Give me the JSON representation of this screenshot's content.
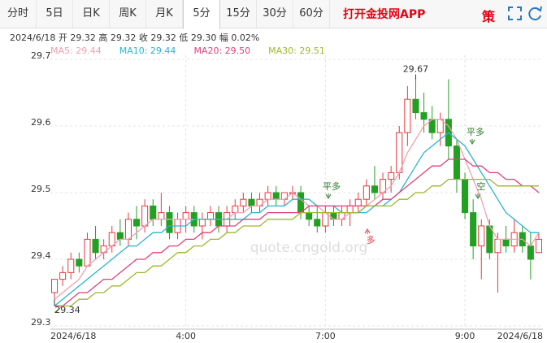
{
  "header": {
    "tabs": [
      {
        "label": "分时"
      },
      {
        "label": "5日"
      },
      {
        "label": "日K"
      },
      {
        "label": "周K"
      },
      {
        "label": "月K"
      },
      {
        "label": "5分",
        "active": true
      },
      {
        "label": "15分"
      },
      {
        "label": "30分"
      },
      {
        "label": "60分"
      }
    ],
    "app_link": "打开金投网APP",
    "strategy": "策",
    "info": "2024/6/18 开 29.32 高 29.32 收 29.32 低 29.30 幅 0.02%"
  },
  "chart_data": {
    "type": "candlestick",
    "watermark": "quote.cngold.org",
    "categories": [
      "2024/6/18",
      null,
      null,
      null,
      null,
      null,
      null,
      null,
      null,
      null,
      null,
      null,
      null,
      null,
      null,
      null,
      "4:00",
      null,
      null,
      null,
      null,
      null,
      null,
      null,
      null,
      null,
      null,
      null,
      null,
      null,
      null,
      null,
      null,
      "7:00",
      null,
      null,
      null,
      null,
      null,
      null,
      null,
      null,
      null,
      null,
      null,
      null,
      null,
      null,
      null,
      null,
      "9:00",
      null,
      null,
      null,
      null,
      null,
      null,
      null,
      null,
      "2024/6/18"
    ],
    "ylim": [
      29.3,
      29.7
    ],
    "yticks": [
      29.3,
      29.4,
      29.5,
      29.6,
      29.7
    ],
    "grid": true,
    "up_color": "#e8383d",
    "down_color": "#22a022",
    "open": [
      29.35,
      29.37,
      29.38,
      29.4,
      29.39,
      29.43,
      29.41,
      29.42,
      29.44,
      29.43,
      29.46,
      29.45,
      29.48,
      29.46,
      29.47,
      29.44,
      29.46,
      29.47,
      29.45,
      29.46,
      29.47,
      29.45,
      29.47,
      29.48,
      29.49,
      29.48,
      29.49,
      29.5,
      29.49,
      29.5,
      29.5,
      29.47,
      29.46,
      29.45,
      29.47,
      29.46,
      29.47,
      29.48,
      29.49,
      29.51,
      29.5,
      29.52,
      29.53,
      29.59,
      29.64,
      29.62,
      29.61,
      29.59,
      29.61,
      29.57,
      29.52,
      29.47,
      29.42,
      29.45,
      29.41,
      29.43,
      29.42,
      29.44,
      29.42,
      29.41
    ],
    "high": [
      29.37,
      29.39,
      29.41,
      29.41,
      29.44,
      29.45,
      29.43,
      29.45,
      29.46,
      29.47,
      29.48,
      29.49,
      29.49,
      29.5,
      29.48,
      29.47,
      29.48,
      29.48,
      29.47,
      29.48,
      29.48,
      29.48,
      29.49,
      29.5,
      29.5,
      29.5,
      29.51,
      29.51,
      29.5,
      29.51,
      29.51,
      29.48,
      29.48,
      29.48,
      29.48,
      29.48,
      29.49,
      29.5,
      29.52,
      29.54,
      29.53,
      29.54,
      29.6,
      29.66,
      29.67,
      29.65,
      29.63,
      29.62,
      29.67,
      29.58,
      29.53,
      29.49,
      29.46,
      29.46,
      29.44,
      29.45,
      29.46,
      29.45,
      29.44,
      29.44
    ],
    "low": [
      29.34,
      29.36,
      29.37,
      29.38,
      29.39,
      29.4,
      29.4,
      29.41,
      29.42,
      29.42,
      29.43,
      29.44,
      29.45,
      29.45,
      29.43,
      29.43,
      29.44,
      29.44,
      29.43,
      29.45,
      29.44,
      29.44,
      29.46,
      29.47,
      29.47,
      29.47,
      29.48,
      29.48,
      29.48,
      29.49,
      29.46,
      29.45,
      29.44,
      29.44,
      29.45,
      29.45,
      29.45,
      29.47,
      29.48,
      29.49,
      29.49,
      29.5,
      29.52,
      29.57,
      29.61,
      29.59,
      29.58,
      29.57,
      29.55,
      29.5,
      29.46,
      29.4,
      29.37,
      29.4,
      29.35,
      29.41,
      29.41,
      29.41,
      29.37,
      29.41
    ],
    "close": [
      29.37,
      29.38,
      29.4,
      29.39,
      29.43,
      29.41,
      29.42,
      29.44,
      29.43,
      29.46,
      29.45,
      29.48,
      29.46,
      29.47,
      29.44,
      29.46,
      29.47,
      29.45,
      29.46,
      29.47,
      29.45,
      29.47,
      29.48,
      29.49,
      29.48,
      29.49,
      29.5,
      29.49,
      29.5,
      29.5,
      29.47,
      29.46,
      29.45,
      29.47,
      29.46,
      29.47,
      29.48,
      29.49,
      29.51,
      29.5,
      29.52,
      29.53,
      29.59,
      29.64,
      29.62,
      29.61,
      29.59,
      29.61,
      29.57,
      29.52,
      29.47,
      29.42,
      29.45,
      29.41,
      29.43,
      29.42,
      29.44,
      29.42,
      29.4,
      29.43
    ],
    "series": [
      {
        "name": "MA5: 29.44",
        "color": "#f0a0b4",
        "values": [
          29.34,
          29.35,
          29.36,
          29.37,
          29.39,
          29.4,
          29.41,
          29.42,
          29.43,
          29.43,
          29.44,
          29.45,
          29.46,
          29.46,
          29.46,
          29.46,
          29.46,
          29.46,
          29.46,
          29.46,
          29.46,
          29.46,
          29.47,
          29.47,
          29.48,
          29.48,
          29.49,
          29.49,
          29.49,
          29.5,
          29.49,
          29.48,
          29.48,
          29.47,
          29.46,
          29.46,
          29.47,
          29.47,
          29.48,
          29.49,
          29.5,
          29.51,
          29.53,
          29.56,
          29.58,
          29.6,
          29.61,
          29.61,
          29.6,
          29.58,
          29.55,
          29.52,
          29.49,
          29.45,
          29.43,
          29.43,
          29.43,
          29.43,
          29.42,
          29.44
        ]
      },
      {
        "name": "MA10: 29.44",
        "color": "#2ab4cf",
        "values": [
          29.33,
          29.34,
          29.35,
          29.36,
          29.37,
          29.38,
          29.39,
          29.4,
          29.41,
          29.42,
          29.42,
          29.43,
          29.44,
          29.44,
          29.45,
          29.45,
          29.45,
          29.46,
          29.46,
          29.46,
          29.46,
          29.46,
          29.46,
          29.46,
          29.47,
          29.47,
          29.48,
          29.48,
          29.48,
          29.49,
          29.49,
          29.49,
          29.48,
          29.48,
          29.48,
          29.47,
          29.47,
          29.47,
          29.47,
          29.48,
          29.48,
          29.49,
          29.5,
          29.52,
          29.54,
          29.56,
          29.57,
          29.58,
          29.59,
          29.58,
          29.57,
          29.55,
          29.53,
          29.51,
          29.49,
          29.47,
          29.46,
          29.45,
          29.44,
          29.44
        ]
      },
      {
        "name": "MA20: 29.50",
        "color": "#e0407a",
        "values": [
          29.33,
          29.33,
          29.34,
          29.35,
          29.35,
          29.36,
          29.37,
          29.37,
          29.38,
          29.39,
          29.4,
          29.4,
          29.41,
          29.41,
          29.42,
          29.42,
          29.43,
          29.43,
          29.44,
          29.44,
          29.45,
          29.45,
          29.45,
          29.46,
          29.46,
          29.46,
          29.47,
          29.47,
          29.47,
          29.47,
          29.47,
          29.48,
          29.48,
          29.48,
          29.48,
          29.48,
          29.48,
          29.48,
          29.48,
          29.48,
          29.49,
          29.49,
          29.5,
          29.51,
          29.52,
          29.53,
          29.54,
          29.54,
          29.55,
          29.55,
          29.55,
          29.54,
          29.54,
          29.53,
          29.53,
          29.52,
          29.52,
          29.51,
          29.51,
          29.5
        ]
      },
      {
        "name": "MA30: 29.51",
        "color": "#9cb82c",
        "values": [
          29.32,
          29.33,
          29.33,
          29.34,
          29.34,
          29.35,
          29.35,
          29.36,
          29.36,
          29.37,
          29.38,
          29.38,
          29.39,
          29.39,
          29.4,
          29.41,
          29.41,
          29.42,
          29.42,
          29.43,
          29.43,
          29.44,
          29.44,
          29.45,
          29.45,
          29.45,
          29.46,
          29.46,
          29.46,
          29.46,
          29.47,
          29.47,
          29.47,
          29.47,
          29.47,
          29.47,
          29.47,
          29.47,
          29.48,
          29.48,
          29.48,
          29.48,
          29.49,
          29.49,
          29.5,
          29.5,
          29.51,
          29.51,
          29.52,
          29.52,
          29.52,
          29.52,
          29.52,
          29.52,
          29.51,
          29.51,
          29.51,
          29.51,
          29.51,
          29.51
        ]
      }
    ],
    "annotations": [
      {
        "text": "29.67",
        "value": 29.67
      },
      {
        "text": "29.34",
        "value": 29.34
      }
    ],
    "signals": [
      {
        "label": "平多"
      },
      {
        "label": "多"
      },
      {
        "label": "平多"
      },
      {
        "label": "空"
      }
    ]
  }
}
